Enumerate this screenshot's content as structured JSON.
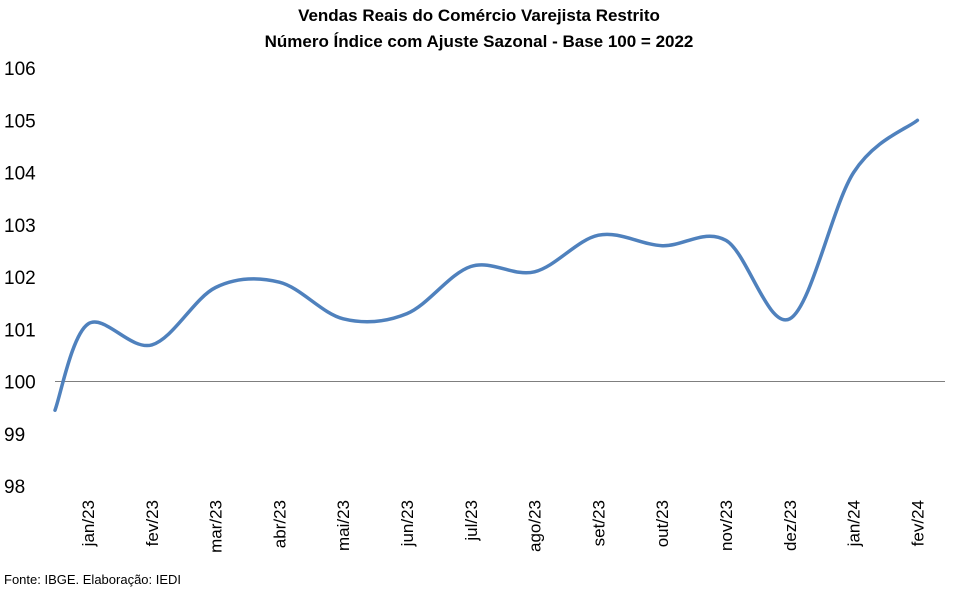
{
  "chart_data": {
    "type": "line",
    "title": "Vendas Reais do Comércio Varejista Restrito",
    "subtitle": "Número Índice com Ajuste Sazonal - Base 100 = 2022",
    "categories": [
      "jan/23",
      "fev/23",
      "mar/23",
      "abr/23",
      "mai/23",
      "jun/23",
      "jul/23",
      "ago/23",
      "set/23",
      "out/23",
      "nov/23",
      "dez/23",
      "jan/24",
      "fev/24"
    ],
    "series": [
      {
        "values": [
          101.1,
          100.7,
          101.8,
          101.9,
          101.2,
          101.3,
          102.2,
          102.1,
          102.8,
          102.6,
          102.7,
          101.2,
          104.0,
          105.0
        ]
      }
    ],
    "ylim": [
      98,
      106
    ],
    "yticks": [
      98,
      99,
      100,
      101,
      102,
      103,
      104,
      105,
      106
    ],
    "reference_line": 100,
    "line_color": "#4f81bd",
    "grid": false
  },
  "source": "Fonte: IBGE. Elaboração: IEDI"
}
